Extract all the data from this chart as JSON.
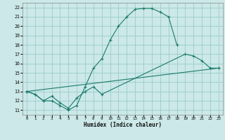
{
  "xlabel": "Humidex (Indice chaleur)",
  "bg_color": "#cce8e8",
  "grid_color": "#99cccc",
  "line_color": "#1a7a6a",
  "xlim": [
    -0.5,
    23.5
  ],
  "ylim": [
    10.5,
    22.5
  ],
  "xticks": [
    0,
    1,
    2,
    3,
    4,
    5,
    6,
    7,
    8,
    9,
    10,
    11,
    12,
    13,
    14,
    15,
    16,
    17,
    18,
    19,
    20,
    21,
    22,
    23
  ],
  "yticks": [
    11,
    12,
    13,
    14,
    15,
    16,
    17,
    18,
    19,
    20,
    21,
    22
  ],
  "curve1_x": [
    0,
    1,
    2,
    3,
    4,
    5,
    6,
    7,
    8,
    9,
    10,
    11,
    12,
    13,
    14,
    15,
    16,
    17,
    18
  ],
  "curve1_y": [
    13.0,
    12.7,
    12.0,
    12.0,
    11.5,
    11.0,
    11.5,
    13.5,
    15.5,
    16.5,
    18.5,
    20.0,
    21.0,
    21.8,
    21.9,
    21.9,
    21.5,
    21.0,
    18.0
  ],
  "curve2_x": [
    0,
    1,
    2,
    3,
    4,
    5,
    6,
    7,
    8,
    9,
    19,
    20,
    21,
    22,
    23
  ],
  "curve2_y": [
    13.0,
    12.7,
    12.0,
    12.5,
    11.8,
    11.2,
    12.3,
    13.0,
    13.5,
    12.7,
    17.0,
    16.8,
    16.3,
    15.5,
    15.5
  ],
  "curve3_x": [
    0,
    23
  ],
  "curve3_y": [
    13.0,
    15.5
  ],
  "xtick_labels": [
    "0",
    "1",
    "2",
    "3",
    "4",
    "5",
    "6",
    "7",
    "8",
    "9",
    "10",
    "11",
    "12",
    "13",
    "14",
    "15",
    "16",
    "17",
    "18",
    "19",
    "20",
    "21",
    "22",
    "23"
  ]
}
